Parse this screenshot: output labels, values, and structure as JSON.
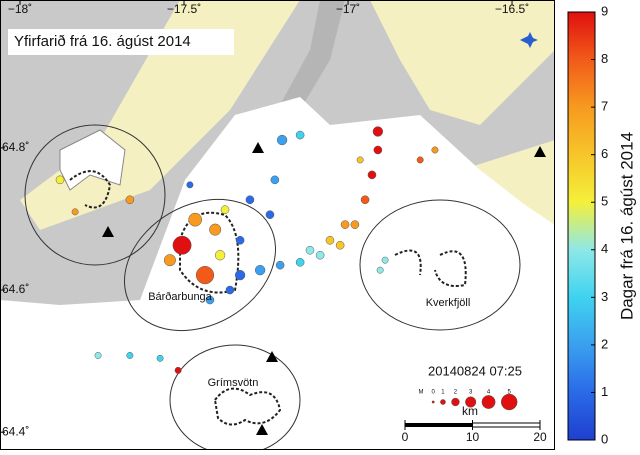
{
  "map": {
    "title": "Yfirfarið frá 16. ágúst 2014",
    "timestamp": "20140824 07:25",
    "lonlim": [
      -18.061,
      -16.369
    ],
    "latlim": [
      64.375,
      65.008
    ],
    "lon_ticks": [
      {
        "value": -18,
        "label": "−18˚"
      },
      {
        "value": -17.5,
        "label": "−17.5˚"
      },
      {
        "value": -17,
        "label": "−17˚"
      },
      {
        "value": -16.5,
        "label": "−16.5˚"
      }
    ],
    "lat_ticks": [
      {
        "value": 64.8,
        "label": "64.8˚"
      },
      {
        "value": 64.6,
        "label": "64.6˚"
      },
      {
        "value": 64.4,
        "label": "64.4˚"
      }
    ],
    "places": [
      "Bárðarbunga",
      "Kverkfjöll",
      "Grímsvötn"
    ]
  },
  "earthquakes": {
    "lon": [
      -17.506,
      -17.436,
      -17.466,
      -17.405,
      -17.543,
      -17.39,
      -17.329,
      -17.268,
      -17.207,
      -17.146,
      -17.085,
      -17.024,
      -16.979,
      -16.948,
      -16.927,
      -16.909,
      -16.909,
      -17.201,
      -17.146,
      -17.223,
      -17.238,
      -17.299,
      -17.482,
      -17.665,
      -17.878,
      -17.832,
      -17.762,
      -17.665,
      -17.573,
      -17.518,
      -16.735,
      -16.78,
      -16.887,
      -16.902,
      -17.009,
      -17.055,
      -17.116,
      -17.36,
      -17.421,
      -16.963,
      -17.329,
      -17.375
    ],
    "lat": [
      64.663,
      64.621,
      64.699,
      64.685,
      64.642,
      64.649,
      64.621,
      64.628,
      64.635,
      64.639,
      64.649,
      64.663,
      64.692,
      64.727,
      64.762,
      64.797,
      64.823,
      64.811,
      64.818,
      64.755,
      64.706,
      64.727,
      64.748,
      64.727,
      64.755,
      64.71,
      64.508,
      64.508,
      64.504,
      64.487,
      64.797,
      64.783,
      64.642,
      64.628,
      64.692,
      64.67,
      64.656,
      64.6,
      64.586,
      64.783,
      64.67,
      64.713
    ],
    "days": [
      8.5,
      8,
      7,
      6.5,
      7,
      5,
      1,
      1.5,
      1.5,
      3,
      3.5,
      6,
      7,
      8,
      8.5,
      9,
      9,
      1.5,
      3,
      1.5,
      1,
      1,
      0.5,
      7,
      5,
      7,
      3.5,
      3,
      3,
      8.5,
      7,
      8,
      4,
      3.5,
      6.5,
      5.5,
      4,
      1,
      1.5,
      6,
      1,
      5
    ],
    "magnitude": [
      4.5,
      4.3,
      3,
      2.5,
      2.5,
      2,
      2,
      2,
      1.5,
      1.5,
      1.5,
      1.5,
      1.5,
      1.5,
      1.5,
      1.5,
      2,
      2,
      1.5,
      1.5,
      1.5,
      1.5,
      1,
      1.5,
      1.5,
      1,
      1,
      1,
      1,
      1,
      1,
      1,
      1,
      1,
      1.5,
      1.5,
      1.5,
      1.5,
      1.5,
      1,
      1.5,
      1.5
    ]
  },
  "colorbar": {
    "label": "Dagar frá 16. ágúst 2014",
    "lim": [
      0,
      9
    ],
    "ticks": [
      0,
      1,
      2,
      3,
      4,
      5,
      6,
      7,
      8,
      9
    ],
    "colors": [
      "#1f3fd0",
      "#2a6ae8",
      "#3aa0ef",
      "#3fd3f0",
      "#8ee8e8",
      "#f4f03a",
      "#f7c52a",
      "#f79a1f",
      "#f25a1a",
      "#e01010"
    ]
  },
  "magnitude_legend": {
    "label": "M",
    "values": [
      0,
      1,
      2,
      3,
      4,
      5
    ]
  },
  "distance_scale": {
    "unit": "km",
    "ticks": [
      0,
      10,
      20
    ]
  }
}
